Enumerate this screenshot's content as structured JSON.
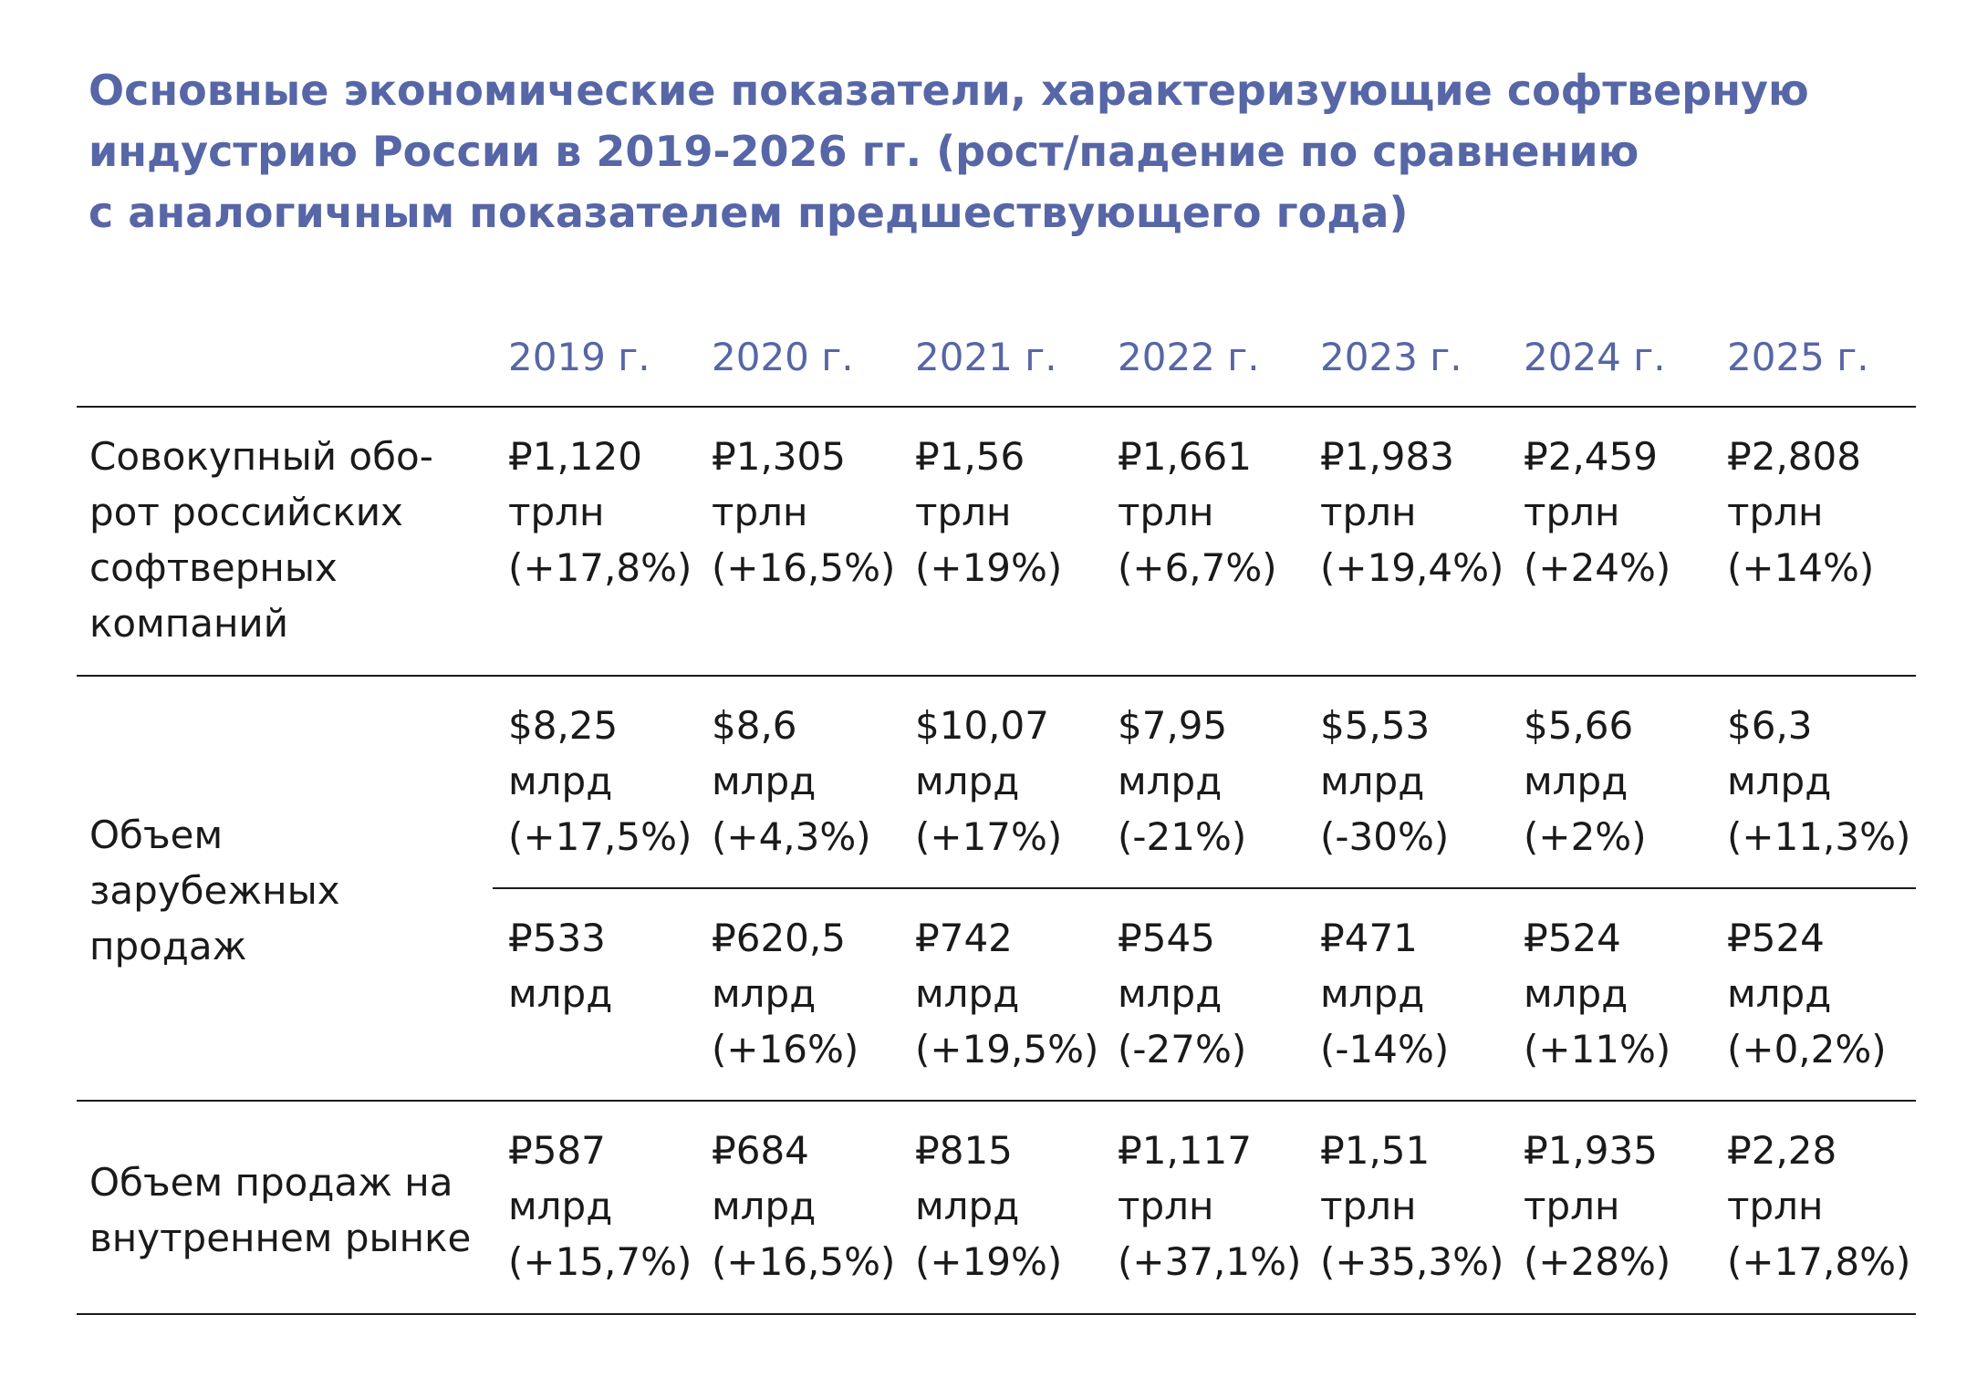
{
  "title_lines": [
    "Основные экономические показатели, характеризующие софтверную",
    "индустрию России в 2019-2026 гг. (рост/падение по сравнению",
    "с аналогичным показателем предшествующего года)"
  ],
  "colors": {
    "accent": "#5666a6",
    "text": "#1a1a1a",
    "rule": "#1a1a1a"
  },
  "chart_data": {
    "type": "table",
    "title": "Основные экономические показатели, характеризующие софтверную индустрию России в 2019-2026 гг. (рост/падение по сравнению с аналогичным показателем предшествующего года)",
    "columns": [
      "2019 г.",
      "2020 г.",
      "2021 г.",
      "2022 г.",
      "2023 г.",
      "2024 г.",
      "2025 г."
    ],
    "rows": [
      {
        "label": "Совокупный обо-рот российских софтверных компаний",
        "label_lines": [
          "Совокупный обо-",
          "рот российских",
          "софтверных",
          "компаний"
        ],
        "cells": [
          [
            "₽1,120",
            "трлн",
            "(+17,8%)"
          ],
          [
            "₽1,305",
            "трлн",
            "(+16,5%)"
          ],
          [
            "₽1,56",
            "трлн",
            "(+19%)"
          ],
          [
            "₽1,661",
            "трлн",
            "(+6,7%)"
          ],
          [
            "₽1,983",
            "трлн",
            "(+19,4%)"
          ],
          [
            "₽2,459",
            "трлн",
            "(+24%)"
          ],
          [
            "₽2,808",
            "трлн",
            "(+14%)"
          ]
        ]
      },
      {
        "label": "Объем зарубежных продаж",
        "label_lines": [
          "Объем",
          "зарубежных",
          "продаж"
        ],
        "cells": [
          [
            "$8,25",
            "млрд",
            "(+17,5%)"
          ],
          [
            "$8,6",
            "млрд",
            "(+4,3%)"
          ],
          [
            "$10,07",
            "млрд",
            "(+17%)"
          ],
          [
            "$7,95",
            "млрд",
            "(-21%)"
          ],
          [
            "$5,53",
            "млрд",
            "(-30%)"
          ],
          [
            "$5,66",
            "млрд",
            "(+2%)"
          ],
          [
            "$6,3",
            "млрд",
            "(+11,3%)"
          ]
        ],
        "cells_rub": [
          [
            "₽533",
            "млрд"
          ],
          [
            "₽620,5",
            "млрд",
            "(+16%)"
          ],
          [
            "₽742",
            "млрд",
            "(+19,5%)"
          ],
          [
            "₽545",
            "млрд",
            "(-27%)"
          ],
          [
            "₽471",
            "млрд",
            "(-14%)"
          ],
          [
            "₽524",
            "млрд",
            "(+11%)"
          ],
          [
            "₽524",
            "млрд",
            "(+0,2%)"
          ]
        ]
      },
      {
        "label": "Объем продаж на внутреннем рынке",
        "label_lines": [
          "Объем продаж на",
          "внутреннем рынке"
        ],
        "cells": [
          [
            "₽587",
            "млрд",
            "(+15,7%)"
          ],
          [
            "₽684",
            "млрд",
            "(+16,5%)"
          ],
          [
            "₽815",
            "млрд",
            "(+19%)"
          ],
          [
            "₽1,117",
            "трлн",
            "(+37,1%)"
          ],
          [
            "₽1,51",
            "трлн",
            "(+35,3%)"
          ],
          [
            "₽1,935",
            "трлн",
            "(+28%)"
          ],
          [
            "₽2,28",
            "трлн",
            "(+17,8%)"
          ]
        ]
      }
    ]
  }
}
